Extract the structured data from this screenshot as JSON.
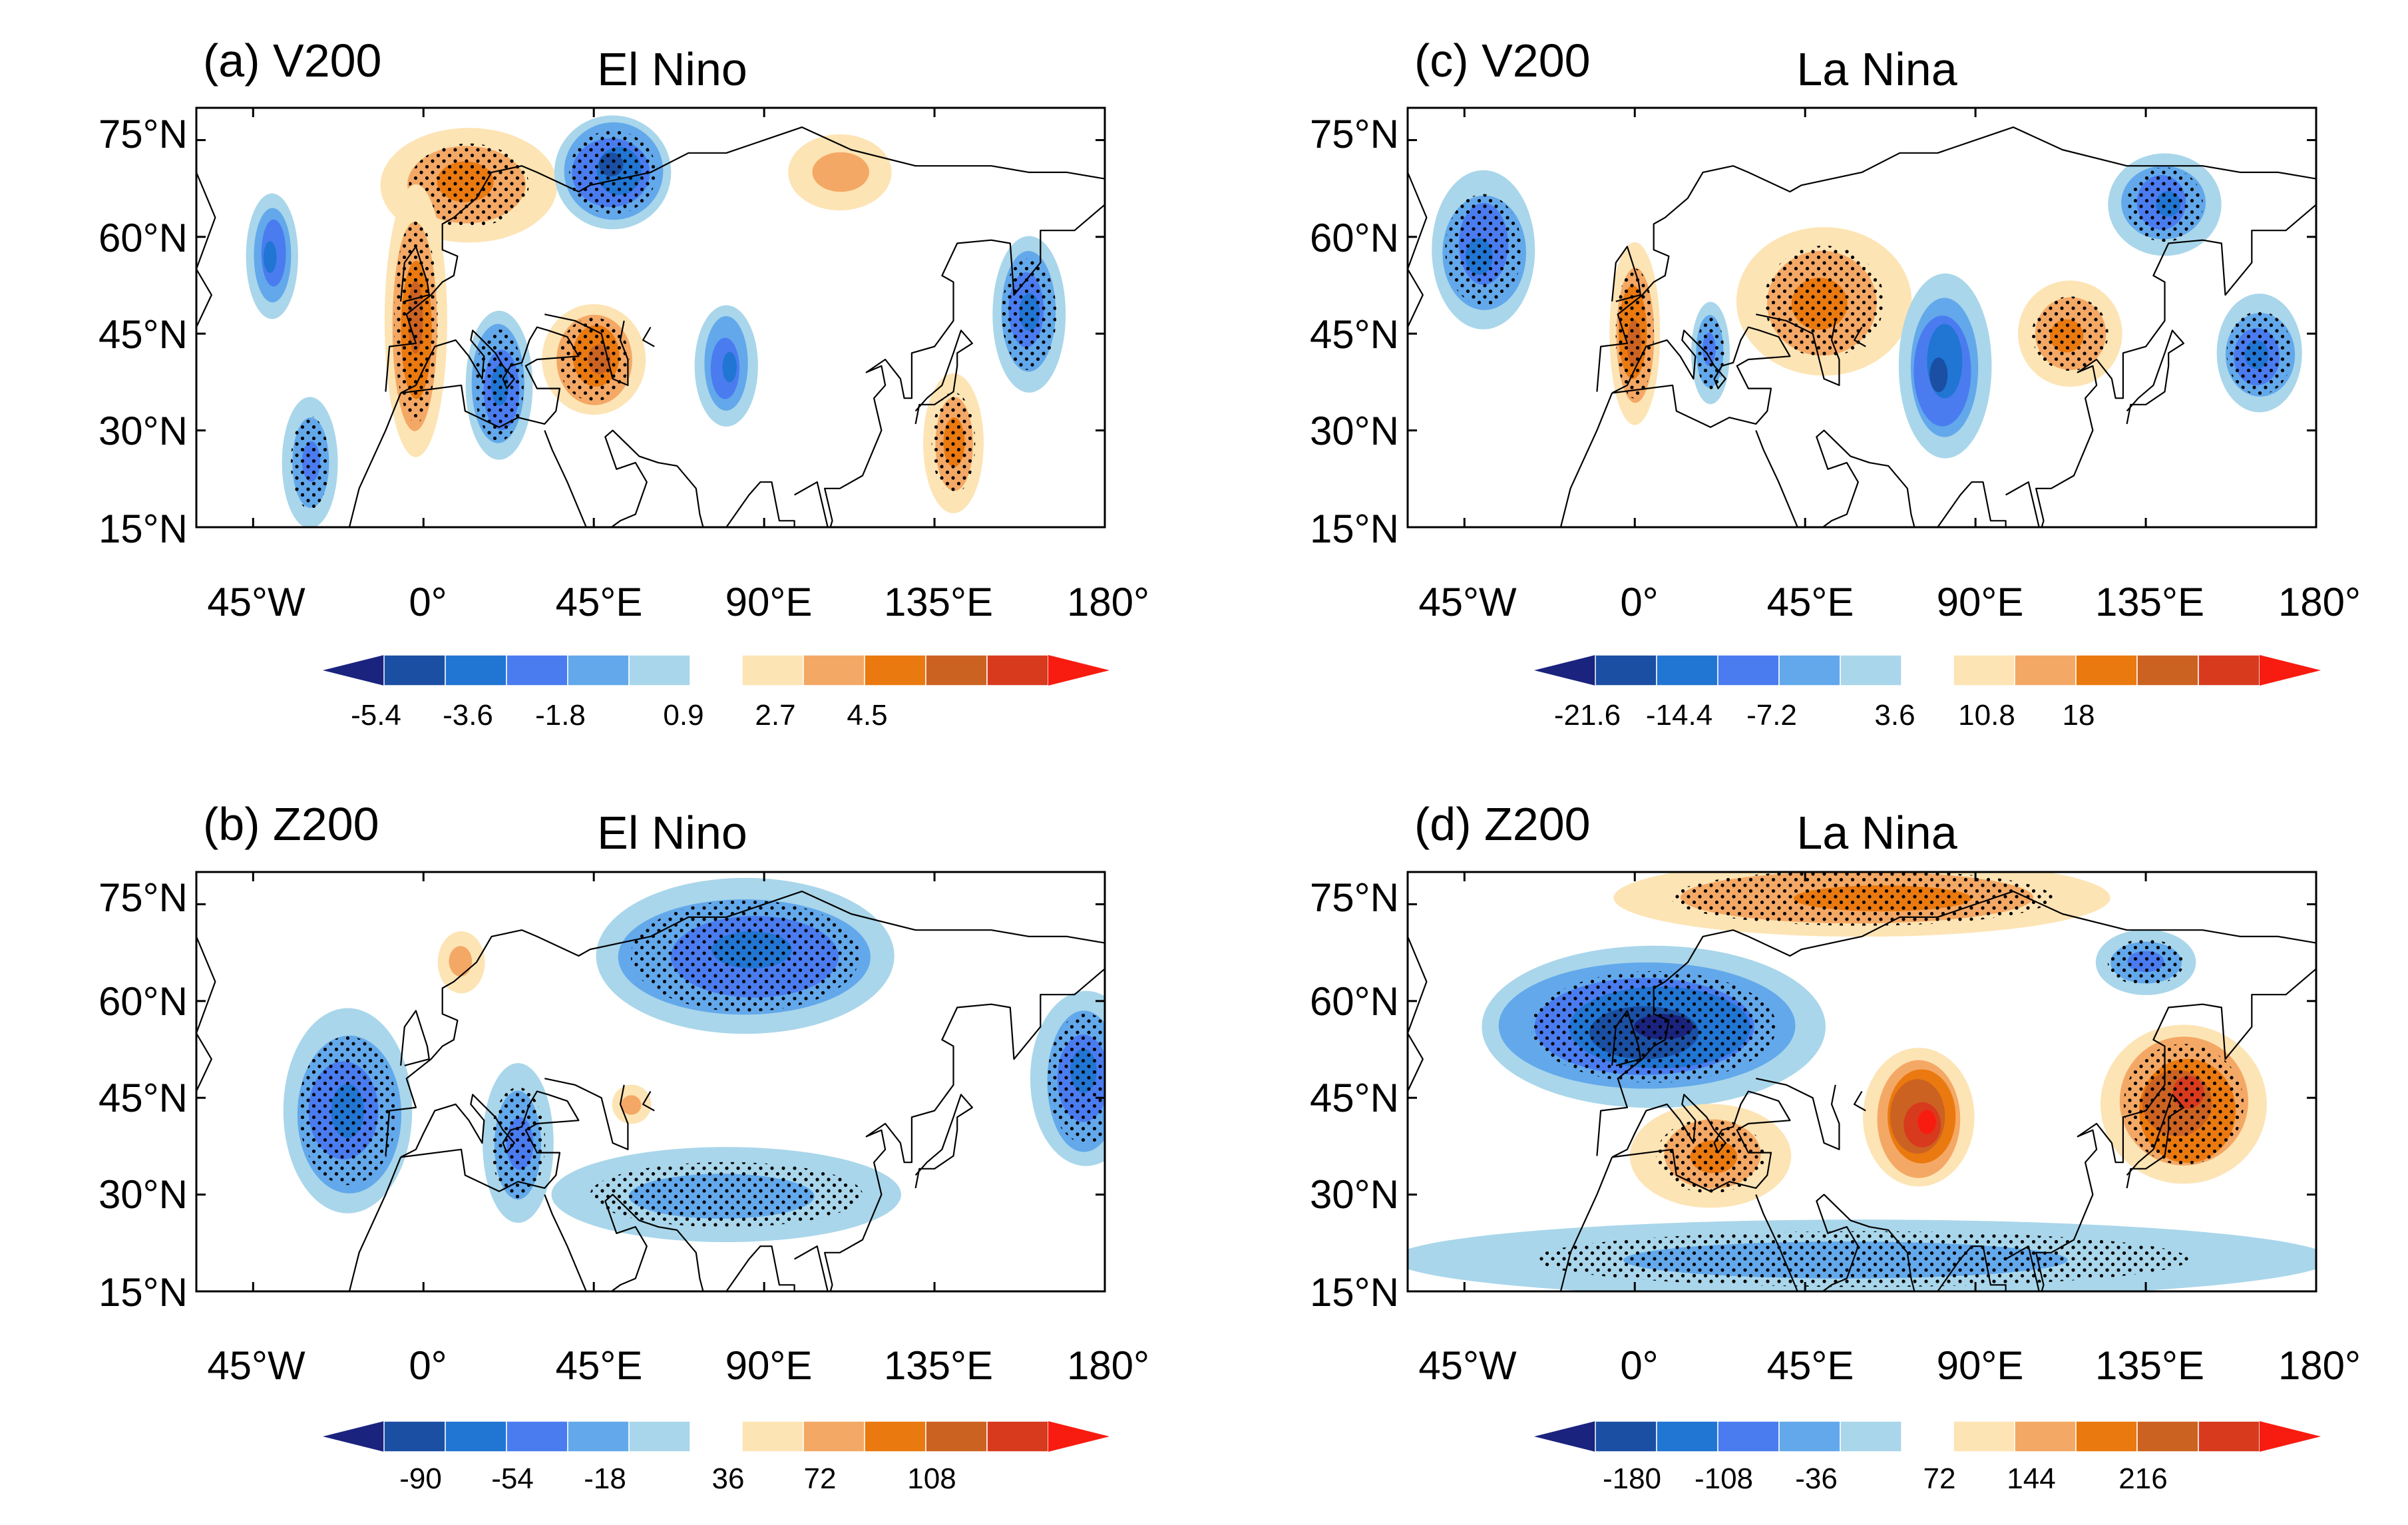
{
  "colors": {
    "neg": [
      "#1a237e",
      "#1a4fa3",
      "#2175d3",
      "#4a7cf0",
      "#62a8eb",
      "#a9d6ea"
    ],
    "pos": [
      "#fde4b4",
      "#f4a865",
      "#ea790f",
      "#cc6222",
      "#d83a1e",
      "#f81b10"
    ],
    "coast": "#000000",
    "stipple": "#000000"
  },
  "panels": [
    {
      "id": "a",
      "label": "(a) V200",
      "title": "El Nino",
      "lat_ticks": [
        "75°N",
        "60°N",
        "45°N",
        "30°N",
        "15°N"
      ],
      "lon_ticks": [
        "45°W",
        "0°",
        "45°E",
        "90°E",
        "135°E",
        "180°"
      ],
      "colorbar_labels": [
        "-5.4",
        "-3.6",
        "-1.8",
        "0.9",
        "2.7",
        "4.5"
      ],
      "anomalies": [
        {
          "lon": 12,
          "lat": 68,
          "r": 22,
          "ry": 9,
          "lvl": 3,
          "stip": true
        },
        {
          "lon": -40,
          "lat": 57,
          "r": 7,
          "ry": 10,
          "lvl": -4,
          "stip": false
        },
        {
          "lon": -2,
          "lat": 47,
          "r": 8,
          "ry": 22,
          "lvl": 4,
          "stip": true
        },
        {
          "lon": 20,
          "lat": 37,
          "r": 9,
          "ry": 12,
          "lvl": -4,
          "stip": true
        },
        {
          "lon": 50,
          "lat": 70,
          "r": 16,
          "ry": 9,
          "lvl": -5,
          "stip": true
        },
        {
          "lon": 45,
          "lat": 41,
          "r": 13,
          "ry": 9,
          "lvl": 4,
          "stip": true
        },
        {
          "lon": 80,
          "lat": 40,
          "r": 8,
          "ry": 10,
          "lvl": -4,
          "stip": false
        },
        {
          "lon": 110,
          "lat": 70,
          "r": 14,
          "ry": 6,
          "lvl": 2,
          "stip": false
        },
        {
          "lon": 160,
          "lat": 48,
          "r": 10,
          "ry": 12,
          "lvl": -4,
          "stip": true
        },
        {
          "lon": 140,
          "lat": 28,
          "r": 8,
          "ry": 11,
          "lvl": 3,
          "stip": true
        },
        {
          "lon": -30,
          "lat": 25,
          "r": 7,
          "ry": 10,
          "lvl": -3,
          "stip": true
        }
      ]
    },
    {
      "id": "b",
      "label": "(b) Z200",
      "title": "El Nino",
      "lat_ticks": [
        "75°N",
        "60°N",
        "45°N",
        "30°N",
        "15°N"
      ],
      "lon_ticks": [
        "45°W",
        "0°",
        "45°E",
        "90°E",
        "135°E",
        "180°"
      ],
      "colorbar_labels": [
        "-90",
        "-54",
        "-18",
        "36",
        "72",
        "108"
      ],
      "anomalies": [
        {
          "lon": 85,
          "lat": 67,
          "r": 42,
          "ry": 12,
          "lvl": -4,
          "stip": true
        },
        {
          "lon": -20,
          "lat": 43,
          "r": 18,
          "ry": 16,
          "lvl": -4,
          "stip": true
        },
        {
          "lon": 25,
          "lat": 38,
          "r": 10,
          "ry": 12,
          "lvl": -3,
          "stip": true
        },
        {
          "lon": 80,
          "lat": 30,
          "r": 50,
          "ry": 7,
          "lvl": -2,
          "stip": true
        },
        {
          "lon": 175,
          "lat": 48,
          "r": 14,
          "ry": 14,
          "lvl": -4,
          "stip": true
        },
        {
          "lon": 10,
          "lat": 66,
          "r": 6,
          "ry": 5,
          "lvl": 2,
          "stip": false
        },
        {
          "lon": 55,
          "lat": 44,
          "r": 5,
          "ry": 3,
          "lvl": 2,
          "stip": false
        }
      ]
    },
    {
      "id": "c",
      "label": "(c) V200",
      "title": "La Nina",
      "lat_ticks": [
        "75°N",
        "60°N",
        "45°N",
        "30°N",
        "15°N"
      ],
      "lon_ticks": [
        "45°W",
        "0°",
        "45°E",
        "90°E",
        "135°E",
        "180°"
      ],
      "colorbar_labels": [
        "-21.6",
        "-14.4",
        "-7.2",
        "3.6",
        "10.8",
        "18"
      ],
      "anomalies": [
        {
          "lon": -40,
          "lat": 58,
          "r": 14,
          "ry": 12,
          "lvl": -4,
          "stip": true
        },
        {
          "lon": 0,
          "lat": 45,
          "r": 7,
          "ry": 14,
          "lvl": 4,
          "stip": true
        },
        {
          "lon": 50,
          "lat": 50,
          "r": 22,
          "ry": 12,
          "lvl": 3,
          "stip": true
        },
        {
          "lon": 82,
          "lat": 40,
          "r": 12,
          "ry": 14,
          "lvl": -5,
          "stip": false
        },
        {
          "lon": 115,
          "lat": 45,
          "r": 14,
          "ry": 8,
          "lvl": 3,
          "stip": true
        },
        {
          "lon": 140,
          "lat": 65,
          "r": 14,
          "ry": 8,
          "lvl": -4,
          "stip": true
        },
        {
          "lon": 165,
          "lat": 42,
          "r": 12,
          "ry": 9,
          "lvl": -4,
          "stip": true
        },
        {
          "lon": 20,
          "lat": 42,
          "r": 5,
          "ry": 8,
          "lvl": -3,
          "stip": true
        }
      ]
    },
    {
      "id": "d",
      "label": "(d) Z200",
      "title": "La Nina",
      "lat_ticks": [
        "75°N",
        "60°N",
        "45°N",
        "30°N",
        "15°N"
      ],
      "lon_ticks": [
        "45°W",
        "0°",
        "45°E",
        "90°E",
        "135°E",
        "180°"
      ],
      "colorbar_labels": [
        "-180",
        "-108",
        "-36",
        "72",
        "144",
        "216"
      ],
      "anomalies": [
        {
          "lon": 5,
          "lat": 56,
          "r": 45,
          "ry": 12,
          "lvl": -6,
          "stip": true
        },
        {
          "lon": 60,
          "lat": 76,
          "r": 70,
          "ry": 6,
          "lvl": 3,
          "stip": true
        },
        {
          "lon": 75,
          "lat": 42,
          "r": 14,
          "ry": 11,
          "lvl": 6,
          "stip": false
        },
        {
          "lon": 145,
          "lat": 44,
          "r": 22,
          "ry": 13,
          "lvl": 5,
          "stip": true
        },
        {
          "lon": 20,
          "lat": 36,
          "r": 20,
          "ry": 8,
          "lvl": 3,
          "stip": true
        },
        {
          "lon": 135,
          "lat": 66,
          "r": 14,
          "ry": 5,
          "lvl": -3,
          "stip": true
        },
        {
          "lon": 60,
          "lat": 20,
          "r": 120,
          "ry": 6,
          "lvl": -2,
          "stip": true
        }
      ]
    }
  ]
}
